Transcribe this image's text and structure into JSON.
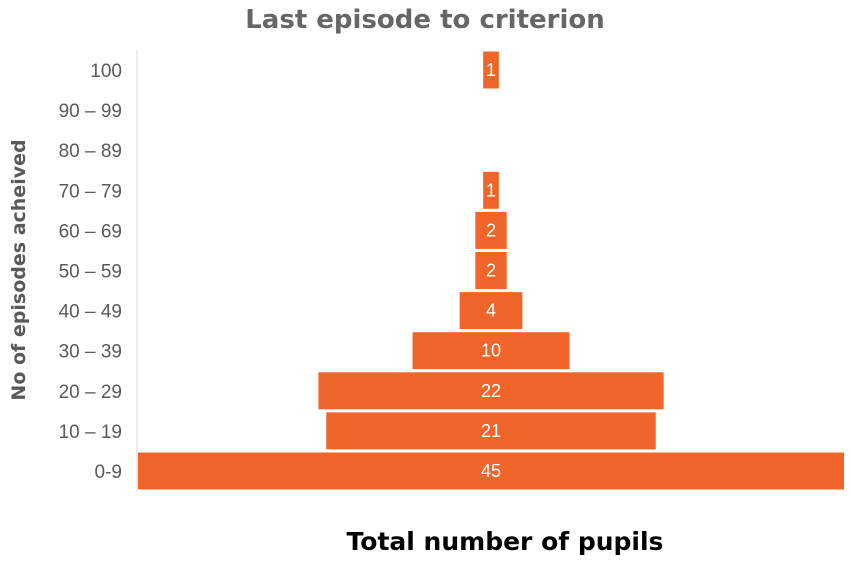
{
  "chart_data": {
    "type": "bar",
    "orientation": "horizontal",
    "layout": "centered-pyramid",
    "title": "Last episode to criterion",
    "xlabel": "Total number of pupils",
    "ylabel": "No of episodes acheived",
    "categories": [
      "0-9",
      "10 – 19",
      "20 – 29",
      "30 – 39",
      "40 – 49",
      "50 – 59",
      "60 – 69",
      "70 – 79",
      "80 – 89",
      "90 – 99",
      "100"
    ],
    "values": [
      45,
      21,
      22,
      10,
      4,
      2,
      2,
      1,
      null,
      null,
      1
    ],
    "data_labels": [
      "45",
      "21",
      "22",
      "10",
      "4",
      "2",
      "2",
      "1",
      "",
      "",
      "1"
    ],
    "xlim": [
      0,
      45
    ],
    "grid": false,
    "legend": "none"
  },
  "colors": {
    "bar": "#f06529",
    "title": "#666666",
    "axis_label": "#595959",
    "tick": "#595959",
    "data_label": "#ffffff",
    "axis_line": "#d9d9d9",
    "xlabel": "#000000"
  }
}
